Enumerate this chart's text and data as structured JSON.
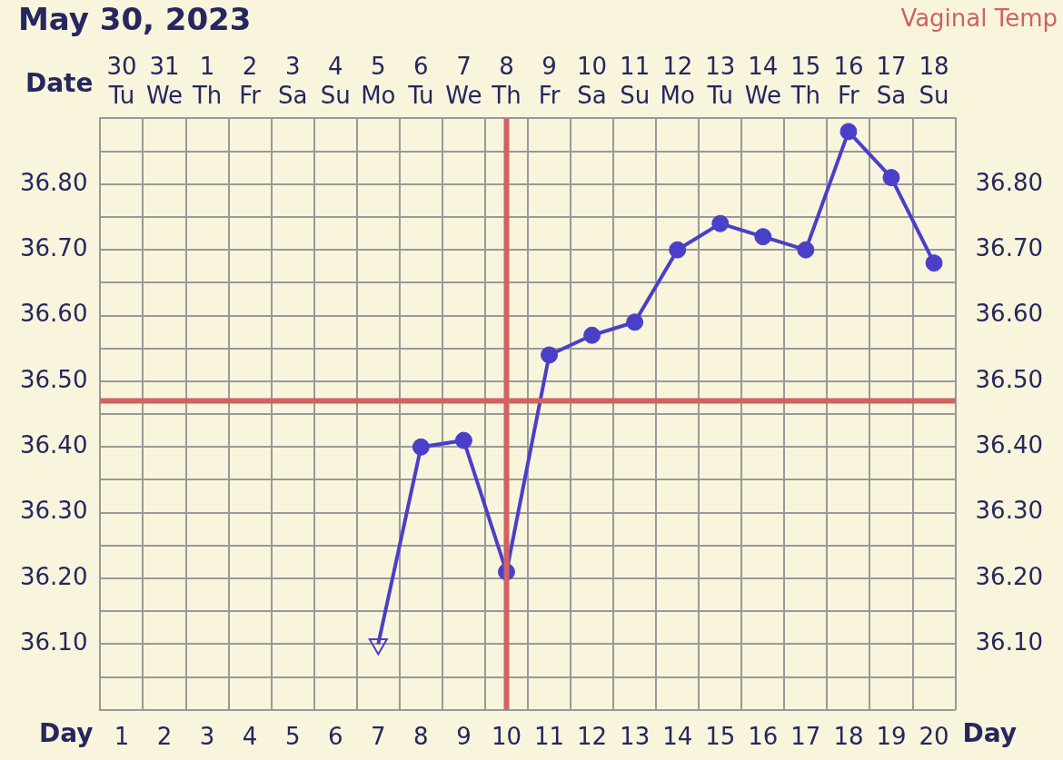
{
  "chart_data": {
    "type": "line",
    "title": "May 30, 2023",
    "annotations": [
      "Vaginal Temp"
    ],
    "xlabel": "Date",
    "x2label": "Day",
    "categories": [
      "30\nTu",
      "31\nWe",
      "1\nTh",
      "2\nFr",
      "3\nSa",
      "4\nSu",
      "5\nMo",
      "6\nTu",
      "7\nWe",
      "8\nTh",
      "9\nFr",
      "10\nSa",
      "11\nSu",
      "12\nMo",
      "13\nTu",
      "14\nWe",
      "15\nTh",
      "16\nFr",
      "17\nSa",
      "18\nSu"
    ],
    "x2lim": [
      0.5,
      20.5
    ],
    "x2ticks": [
      1,
      2,
      3,
      4,
      5,
      6,
      7,
      8,
      9,
      10,
      11,
      12,
      13,
      14,
      15,
      16,
      17,
      18,
      19,
      20
    ],
    "ylim": [
      36.0,
      36.9
    ],
    "yticks": [
      {
        "value": 36.05,
        "label": null
      },
      {
        "value": 36.1,
        "label": "36.10"
      },
      {
        "value": 36.15,
        "label": null
      },
      {
        "value": 36.2,
        "label": "36.20"
      },
      {
        "value": 36.25,
        "label": null
      },
      {
        "value": 36.3,
        "label": "36.30"
      },
      {
        "value": 36.35,
        "label": null
      },
      {
        "value": 36.4,
        "label": "36.40"
      },
      {
        "value": 36.45,
        "label": null
      },
      {
        "value": 36.5,
        "label": "36.50"
      },
      {
        "value": 36.55,
        "label": null
      },
      {
        "value": 36.6,
        "label": "36.60"
      },
      {
        "value": 36.65,
        "label": null
      },
      {
        "value": 36.7,
        "label": "36.70"
      },
      {
        "value": 36.75,
        "label": null
      },
      {
        "value": 36.8,
        "label": "36.80"
      },
      {
        "value": 36.85,
        "label": null
      }
    ],
    "y2lim": [
      36.0,
      36.9
    ],
    "y2ticks": [
      {
        "value": 36.1,
        "label": "36.10"
      },
      {
        "value": 36.2,
        "label": "36.20"
      },
      {
        "value": 36.3,
        "label": "36.30"
      },
      {
        "value": 36.4,
        "label": "36.40"
      },
      {
        "value": 36.5,
        "label": "36.50"
      },
      {
        "value": 36.6,
        "label": "36.60"
      },
      {
        "value": 36.7,
        "label": "36.70"
      },
      {
        "value": 36.8,
        "label": "36.80"
      }
    ],
    "series": [
      {
        "type": "line",
        "marker": "none",
        "color": "#4a3fc8",
        "values": [
          null,
          null,
          null,
          null,
          null,
          null,
          36.1,
          36.4,
          36.41,
          36.21,
          36.54,
          36.57,
          36.59,
          36.7,
          36.74,
          36.72,
          36.7,
          36.88,
          36.81,
          36.68
        ]
      },
      {
        "type": "scatter",
        "marker": "circle",
        "color": "#4a3fc8",
        "values": [
          null,
          null,
          null,
          null,
          null,
          null,
          null,
          36.4,
          36.41,
          36.21,
          36.54,
          36.57,
          36.59,
          36.7,
          36.74,
          36.72,
          36.7,
          36.88,
          36.81,
          36.68
        ]
      },
      {
        "type": "scatter",
        "marker": "triangle",
        "color": "#4a3fc8",
        "values": [
          null,
          null,
          null,
          null,
          null,
          null,
          36.1,
          null,
          null,
          null,
          null,
          null,
          null,
          null,
          null,
          null,
          null,
          null,
          null,
          null
        ]
      }
    ],
    "ref_lines": [
      {
        "axis": "x2",
        "value": 10,
        "color": "#d06262"
      },
      {
        "axis": "y",
        "value": 36.47,
        "color": "#d06262"
      }
    ],
    "grid": true,
    "legend": false
  }
}
